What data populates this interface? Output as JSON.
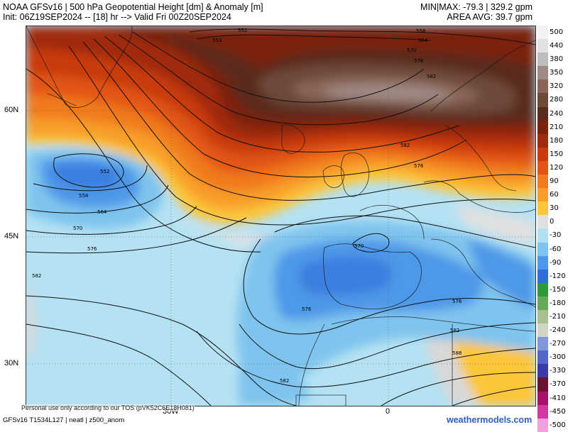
{
  "header": {
    "title_line1": "NOAA GFSv16 | 500 hPa Geopotential Height [dm] & Anomaly [m]",
    "title_line2": "Init: 06Z19SEP2024 -- [18] hr --> Valid Fri 00Z20SEP2024",
    "minmax": "MIN|MAX: -79.3 | 329.2 gpm",
    "area_avg": "AREA AVG: 39.7 gpm"
  },
  "axes": {
    "lat_labels": [
      "60N",
      "45N",
      "30N"
    ],
    "lon_labels": [
      "30W",
      "0"
    ]
  },
  "colorbar": {
    "levels": [
      {
        "label": "500",
        "color": "#f2f2f2"
      },
      {
        "label": "440",
        "color": "#e1e1e1"
      },
      {
        "label": "380",
        "color": "#bdbdbd"
      },
      {
        "label": "350",
        "color": "#9e8a84"
      },
      {
        "label": "320",
        "color": "#8a6658"
      },
      {
        "label": "280",
        "color": "#6e4a3b"
      },
      {
        "label": "240",
        "color": "#5a2c1f"
      },
      {
        "label": "210",
        "color": "#7a2410"
      },
      {
        "label": "180",
        "color": "#a02a0d"
      },
      {
        "label": "150",
        "color": "#c93a10"
      },
      {
        "label": "120",
        "color": "#e25418"
      },
      {
        "label": "90",
        "color": "#f07a1f"
      },
      {
        "label": "60",
        "color": "#f89e2a"
      },
      {
        "label": "30",
        "color": "#fcc63a"
      },
      {
        "label": "0",
        "color": "#e0e0e0"
      },
      {
        "label": "-30",
        "color": "#b0e0f2"
      },
      {
        "label": "-60",
        "color": "#7fc4ee"
      },
      {
        "label": "-90",
        "color": "#4d98e8"
      },
      {
        "label": "-120",
        "color": "#2f6ed8"
      },
      {
        "label": "-150",
        "color": "#2f9a3a"
      },
      {
        "label": "-180",
        "color": "#67a85a"
      },
      {
        "label": "-210",
        "color": "#a8bf92"
      },
      {
        "label": "-240",
        "color": "#d4d4c4"
      },
      {
        "label": "-270",
        "color": "#7f96d8"
      },
      {
        "label": "-300",
        "color": "#5467c4"
      },
      {
        "label": "-330",
        "color": "#3a3aa8"
      },
      {
        "label": "-370",
        "color": "#6a1330"
      },
      {
        "label": "-410",
        "color": "#a8106a"
      },
      {
        "label": "-450",
        "color": "#d23aa0"
      },
      {
        "label": "-500",
        "color": "#f2a0e0"
      }
    ]
  },
  "contour_labels": [
    {
      "text": "552",
      "c": "552"
    },
    {
      "text": "553",
      "c": "553"
    },
    {
      "text": "558",
      "c": "558"
    },
    {
      "text": "564",
      "c": "564"
    },
    {
      "text": "570",
      "c": "570"
    },
    {
      "text": "576",
      "c": "576"
    },
    {
      "text": "582",
      "c": "582"
    },
    {
      "text": "582",
      "c": "582b"
    },
    {
      "text": "576",
      "c": "576b"
    },
    {
      "text": "552",
      "c": "552b"
    },
    {
      "text": "558",
      "c": "558b"
    },
    {
      "text": "564",
      "c": "564b"
    },
    {
      "text": "570",
      "c": "570b"
    },
    {
      "text": "576",
      "c": "576c"
    },
    {
      "text": "582",
      "c": "582c"
    },
    {
      "text": "570",
      "c": "570c"
    },
    {
      "text": "576",
      "c": "576d"
    },
    {
      "text": "576",
      "c": "576e"
    },
    {
      "text": "582",
      "c": "582d"
    },
    {
      "text": "588",
      "c": "588"
    },
    {
      "text": "582",
      "c": "582e"
    }
  ],
  "footer": {
    "tos": "Personal use only according to our TOS (pVK52C6E18H081)",
    "model_info": "GFSv16 T1534L127 | neatl | z500_anom",
    "brand": "weathermodels.com"
  }
}
